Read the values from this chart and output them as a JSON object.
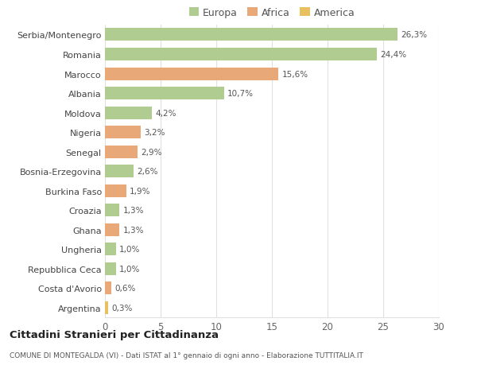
{
  "categories": [
    "Argentina",
    "Costa d'Avorio",
    "Repubblica Ceca",
    "Ungheria",
    "Ghana",
    "Croazia",
    "Burkina Faso",
    "Bosnia-Erzegovina",
    "Senegal",
    "Nigeria",
    "Moldova",
    "Albania",
    "Marocco",
    "Romania",
    "Serbia/Montenegro"
  ],
  "values": [
    0.3,
    0.6,
    1.0,
    1.0,
    1.3,
    1.3,
    1.9,
    2.6,
    2.9,
    3.2,
    4.2,
    10.7,
    15.6,
    24.4,
    26.3
  ],
  "labels": [
    "0,3%",
    "0,6%",
    "1,0%",
    "1,0%",
    "1,3%",
    "1,3%",
    "1,9%",
    "2,6%",
    "2,9%",
    "3,2%",
    "4,2%",
    "10,7%",
    "15,6%",
    "24,4%",
    "26,3%"
  ],
  "colors": [
    "#e8c060",
    "#e8a878",
    "#b0cc90",
    "#b0cc90",
    "#e8a878",
    "#b0cc90",
    "#e8a878",
    "#b0cc90",
    "#e8a878",
    "#e8a878",
    "#b0cc90",
    "#b0cc90",
    "#e8a878",
    "#b0cc90",
    "#b0cc90"
  ],
  "legend_labels": [
    "Europa",
    "Africa",
    "America"
  ],
  "legend_colors": [
    "#b0cc90",
    "#e8a878",
    "#e8c060"
  ],
  "title": "Cittadini Stranieri per Cittadinanza",
  "subtitle": "COMUNE DI MONTEGALDA (VI) - Dati ISTAT al 1° gennaio di ogni anno - Elaborazione TUTTITALIA.IT",
  "xlim": [
    0,
    30
  ],
  "xticks": [
    0,
    5,
    10,
    15,
    20,
    25,
    30
  ],
  "background_color": "#ffffff",
  "grid_color": "#e0e0e0"
}
